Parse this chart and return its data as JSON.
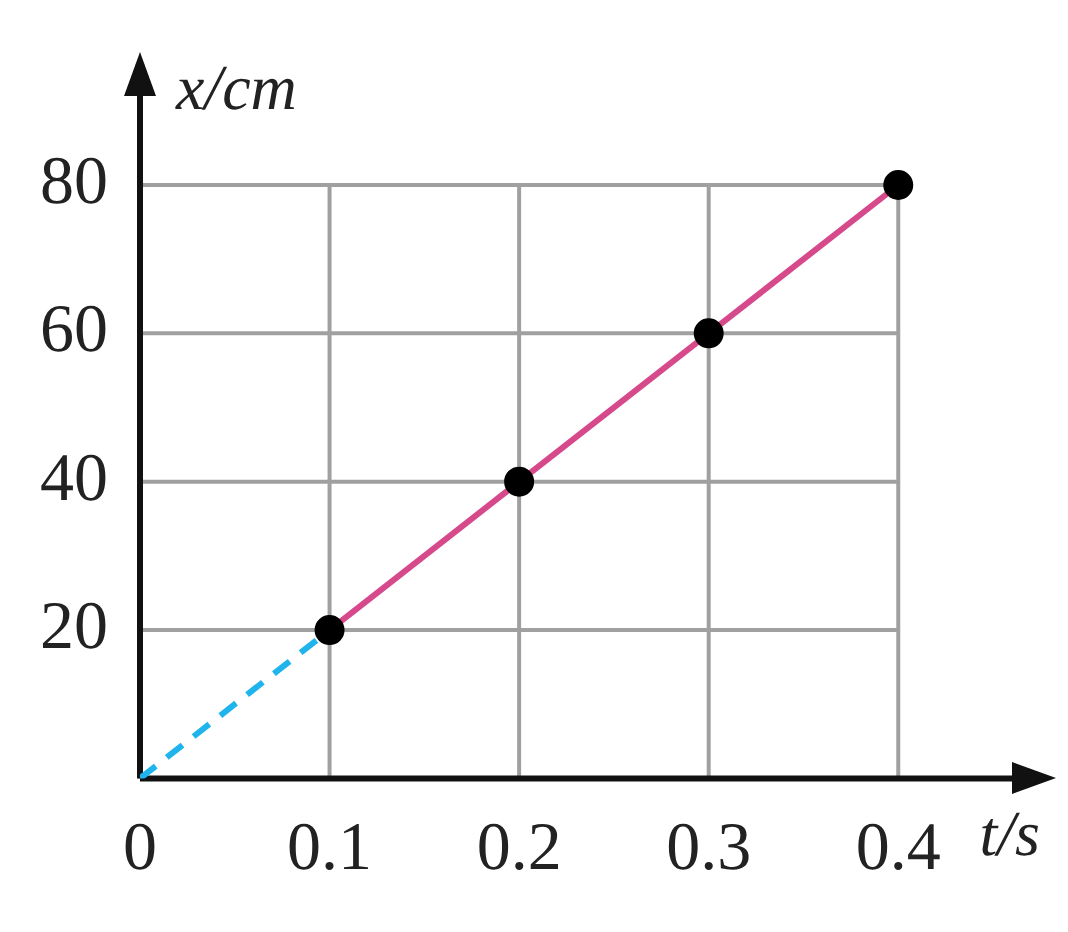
{
  "chart_data": {
    "type": "line",
    "xlabel": "t/s",
    "ylabel": "x/cm",
    "xlim": [
      0,
      0.46
    ],
    "ylim": [
      0,
      92
    ],
    "xticks": [
      0,
      0.1,
      0.2,
      0.3,
      0.4
    ],
    "yticks": [
      20,
      40,
      60,
      80
    ],
    "grid": true,
    "series": [
      {
        "color": "#d64a8c",
        "x": [
          0.1,
          0.2,
          0.3,
          0.4
        ],
        "values": [
          20,
          40,
          60,
          80
        ],
        "marker": "circle",
        "line_style": "solid"
      },
      {
        "color": "#1fb4ec",
        "x": [
          0,
          0.1
        ],
        "values": [
          0,
          20
        ],
        "marker": "none",
        "line_style": "dashed"
      }
    ]
  }
}
